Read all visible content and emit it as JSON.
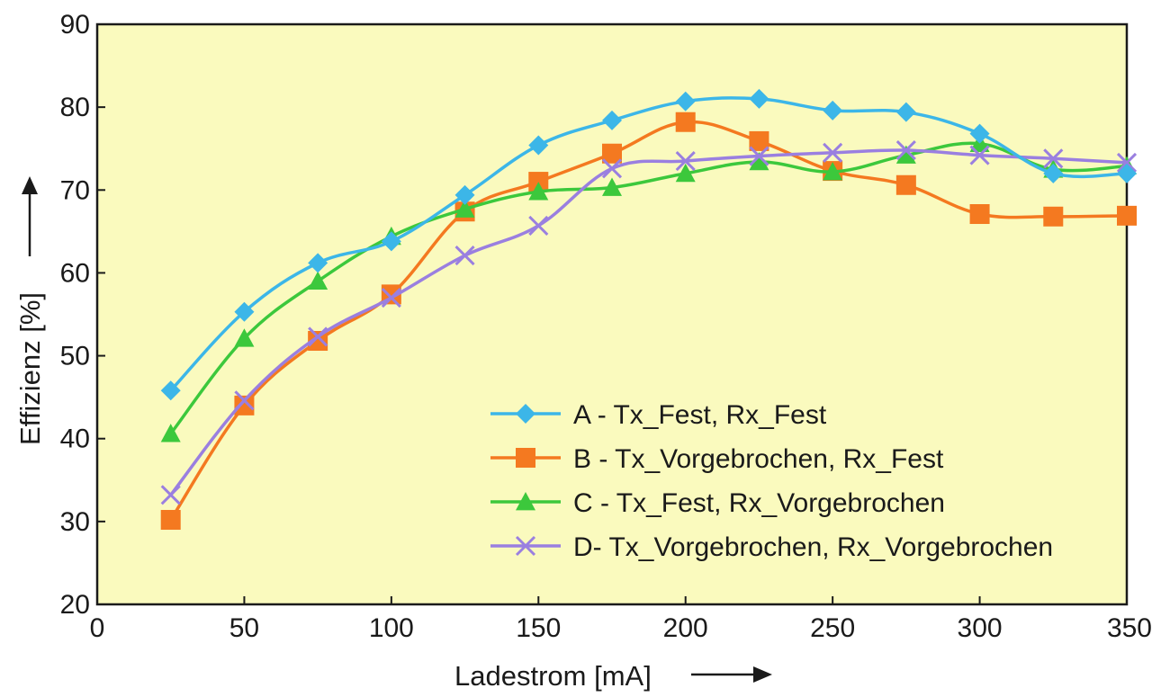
{
  "chart_data": {
    "type": "line",
    "xlabel": "Ladestrom [mA]",
    "ylabel": "Effizienz [%]",
    "xlim": [
      0,
      350
    ],
    "ylim": [
      20,
      90
    ],
    "x_ticks": [
      0,
      50,
      100,
      150,
      200,
      250,
      300,
      350
    ],
    "y_ticks": [
      20,
      30,
      40,
      50,
      60,
      70,
      80,
      90
    ],
    "grid": false,
    "legend_position": "bottom-right",
    "x": [
      25,
      50,
      75,
      100,
      125,
      150,
      175,
      200,
      225,
      250,
      275,
      300,
      325,
      350
    ],
    "series": [
      {
        "name": "A - Tx_Fest, Rx_Fest",
        "color": "#3cb6e8",
        "marker": "diamond",
        "values": [
          45.8,
          55.3,
          61.2,
          63.8,
          69.4,
          75.4,
          78.4,
          80.7,
          81.0,
          79.6,
          79.4,
          76.8,
          72.0,
          72.0
        ]
      },
      {
        "name": "B - Tx_Vorgebrochen, Rx_Fest",
        "color": "#f47920",
        "marker": "square",
        "values": [
          30.2,
          44.0,
          51.8,
          57.4,
          67.4,
          71.0,
          74.4,
          78.2,
          75.9,
          72.3,
          70.6,
          67.1,
          66.8,
          66.9
        ]
      },
      {
        "name": "C - Tx_Fest, Rx_Vorgebrochen",
        "color": "#3cc83c",
        "marker": "triangle",
        "values": [
          40.6,
          52.1,
          59.0,
          64.4,
          67.7,
          69.8,
          70.3,
          72.0,
          73.4,
          72.2,
          74.2,
          75.6,
          72.5,
          72.9
        ]
      },
      {
        "name": "D- Tx_Vorgebrochen, Rx_Vorgebrochen",
        "color": "#9a7fe0",
        "marker": "x",
        "values": [
          33.2,
          44.6,
          52.3,
          57.0,
          62.1,
          65.7,
          72.6,
          73.5,
          74.1,
          74.5,
          74.8,
          74.2,
          73.8,
          73.3
        ]
      }
    ]
  },
  "colors": {
    "plot_background": "#fafabe",
    "axis": "#1a1a1a",
    "page_background": "#ffffff"
  }
}
